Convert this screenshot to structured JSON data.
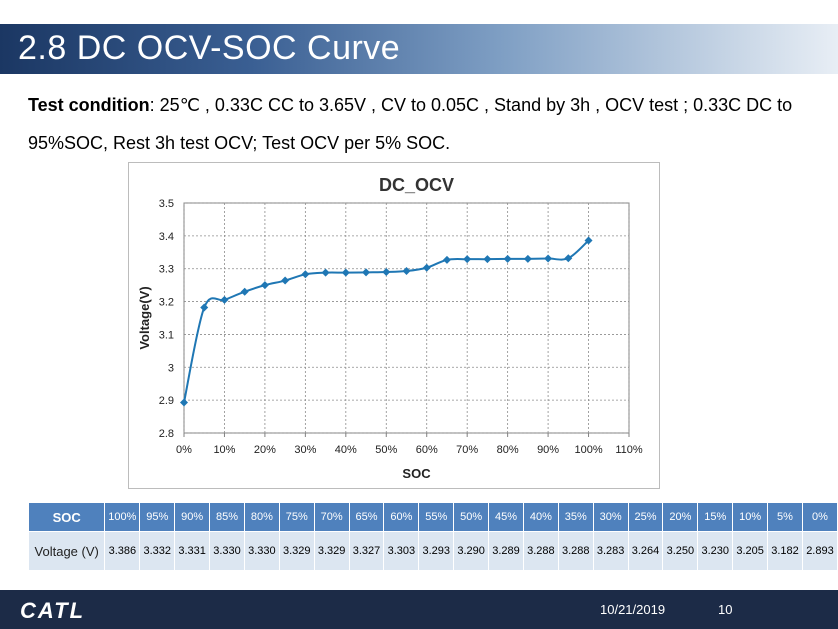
{
  "slide": {
    "title": "2.8 DC OCV-SOC Curve",
    "condition_label": "Test condition",
    "condition_text": ": 25℃ , 0.33C CC to 3.65V , CV to 0.05C , Stand by 3h , OCV test ;  0.33C DC to 95%SOC, Rest 3h test OCV; Test OCV per 5% SOC."
  },
  "chart_data": {
    "type": "line",
    "title": "DC_OCV",
    "xlabel": "SOC",
    "ylabel": "Voltage(V)",
    "x_ticks": [
      "0%",
      "10%",
      "20%",
      "30%",
      "40%",
      "50%",
      "60%",
      "70%",
      "80%",
      "90%",
      "100%",
      "110%"
    ],
    "y_ticks": [
      "2.8",
      "2.9",
      "3",
      "3.1",
      "3.2",
      "3.3",
      "3.4",
      "3.5"
    ],
    "xlim": [
      0,
      110
    ],
    "ylim": [
      2.8,
      3.5
    ],
    "grid": true,
    "series": [
      {
        "name": "DC_OCV",
        "color": "#1f77b4",
        "x": [
          0,
          5,
          10,
          15,
          20,
          25,
          30,
          35,
          40,
          45,
          50,
          55,
          60,
          65,
          70,
          75,
          80,
          85,
          90,
          95,
          100
        ],
        "y": [
          2.893,
          3.182,
          3.205,
          3.23,
          3.25,
          3.264,
          3.283,
          3.288,
          3.288,
          3.289,
          3.29,
          3.293,
          3.303,
          3.327,
          3.329,
          3.329,
          3.33,
          3.33,
          3.331,
          3.332,
          3.386
        ]
      }
    ]
  },
  "table": {
    "soc_label": "SOC",
    "voltage_label": "Voltage (V)",
    "soc_values": [
      "100%",
      "95%",
      "90%",
      "85%",
      "80%",
      "75%",
      "70%",
      "65%",
      "60%",
      "55%",
      "50%",
      "45%",
      "40%",
      "35%",
      "30%",
      "25%",
      "20%",
      "15%",
      "10%",
      "5%",
      "0%"
    ],
    "voltage_values": [
      "3.386",
      "3.332",
      "3.331",
      "3.330",
      "3.330",
      "3.329",
      "3.329",
      "3.327",
      "3.303",
      "3.293",
      "3.290",
      "3.289",
      "3.288",
      "3.288",
      "3.283",
      "3.264",
      "3.250",
      "3.230",
      "3.205",
      "3.182",
      "2.893"
    ]
  },
  "footer": {
    "logo": "CATL",
    "date": "10/21/2019",
    "page": "10"
  }
}
